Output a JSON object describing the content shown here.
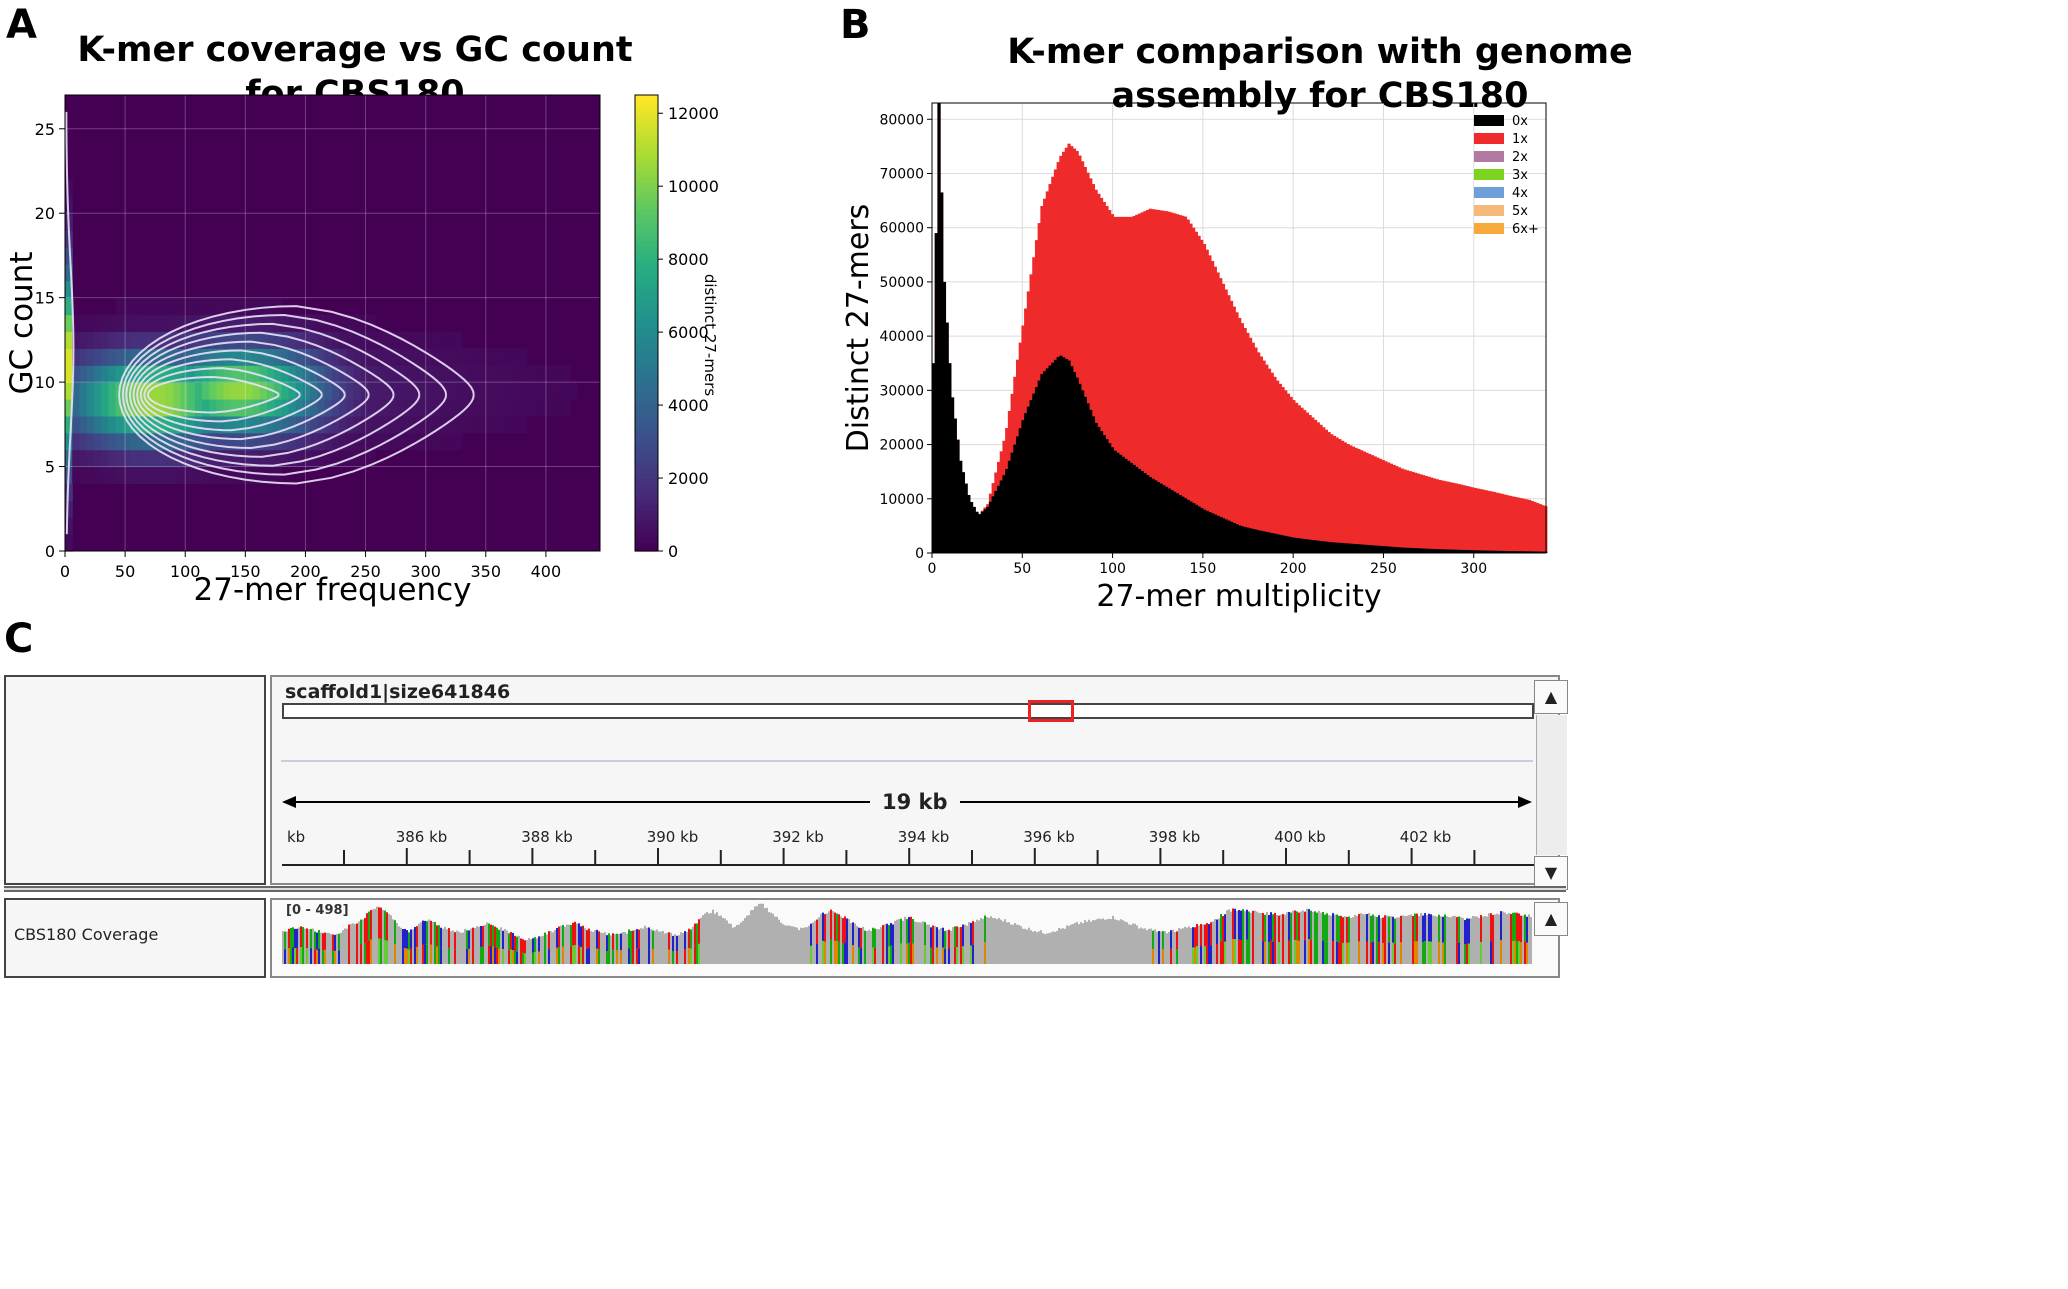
{
  "panels": {
    "a": {
      "letter": "A"
    },
    "b": {
      "letter": "B"
    },
    "c": {
      "letter": "C"
    }
  },
  "colors": {
    "viridis_dark": "#440154",
    "viridis_yellow": "#fde725",
    "red": "#ee2a2a",
    "black": "#000000"
  },
  "chart_data": [
    {
      "type": "heatmap",
      "title_line1": "K-mer coverage vs GC count",
      "title_line2": "for CBS180",
      "xlabel": "27-mer frequency",
      "ylabel": "GC count",
      "xlim": [
        0,
        445
      ],
      "ylim": [
        0,
        27
      ],
      "x_ticks": [
        0,
        50,
        100,
        150,
        200,
        250,
        300,
        350,
        400
      ],
      "y_ticks": [
        0,
        5,
        10,
        15,
        20,
        25
      ],
      "colorbar": {
        "label": "distinct 27-mers",
        "range": [
          0,
          12500
        ],
        "ticks": [
          0,
          2000,
          4000,
          6000,
          8000,
          10000,
          12000
        ]
      },
      "density_peaks": [
        {
          "x": 75,
          "y": 9,
          "value": 11000
        },
        {
          "x": 145,
          "y": 9.5,
          "value": 10500
        }
      ],
      "contour_outer": {
        "x_min": 45,
        "x_max": 340,
        "y_min": 4,
        "y_max": 14.5
      }
    },
    {
      "type": "bar",
      "title_line1": "K-mer comparison with genome",
      "title_line2": "assembly for CBS180",
      "xlabel": "27-mer multiplicity",
      "ylabel": "Distinct 27-mers",
      "xlim": [
        0,
        340
      ],
      "ylim": [
        0,
        83000
      ],
      "x_ticks": [
        0,
        50,
        100,
        150,
        200,
        250,
        300
      ],
      "y_ticks": [
        0,
        10000,
        20000,
        30000,
        40000,
        50000,
        60000,
        70000,
        80000
      ],
      "legend": [
        "0x",
        "1x",
        "2x",
        "3x",
        "4x",
        "5x",
        "6x+"
      ],
      "legend_colors": [
        "#000000",
        "#ee2a2a",
        "#b07aa1",
        "#7ed321",
        "#6f9fd8",
        "#f5b97a",
        "#f7a93b"
      ],
      "series": [
        {
          "name": "total",
          "x": [
            0,
            3,
            6,
            10,
            15,
            20,
            25,
            30,
            40,
            50,
            60,
            70,
            75,
            80,
            90,
            100,
            110,
            120,
            130,
            140,
            150,
            160,
            170,
            180,
            190,
            200,
            210,
            220,
            230,
            240,
            250,
            260,
            270,
            280,
            290,
            300,
            310,
            320,
            330,
            340
          ],
          "values": [
            35000,
            83000,
            50000,
            30000,
            17000,
            10000,
            7000,
            9000,
            22000,
            43000,
            64000,
            73000,
            75500,
            74000,
            67000,
            62000,
            62000,
            63500,
            63000,
            62000,
            57000,
            50000,
            43000,
            37000,
            32000,
            28000,
            25000,
            22000,
            20000,
            18500,
            17000,
            15500,
            14500,
            13500,
            12800,
            12000,
            11300,
            10500,
            9800,
            8500
          ]
        },
        {
          "name": "0x",
          "x": [
            0,
            3,
            6,
            10,
            15,
            20,
            25,
            30,
            40,
            50,
            60,
            70,
            75,
            80,
            90,
            100,
            110,
            120,
            130,
            140,
            150,
            160,
            170,
            180,
            190,
            200,
            220,
            240,
            260,
            280,
            300,
            320,
            340
          ],
          "values": [
            35000,
            83000,
            50000,
            30000,
            17000,
            10000,
            7000,
            8500,
            15000,
            25000,
            33000,
            36500,
            35500,
            32000,
            24000,
            19000,
            16500,
            14000,
            12000,
            10000,
            8000,
            6500,
            5000,
            4200,
            3500,
            2800,
            2000,
            1500,
            1000,
            700,
            500,
            350,
            250
          ]
        }
      ]
    }
  ],
  "igv": {
    "chrom": "scaffold1|size641846",
    "span": "19 kb",
    "ruler_labels": [
      "kb",
      "386 kb",
      "388 kb",
      "390 kb",
      "392 kb",
      "394 kb",
      "396 kb",
      "398 kb",
      "400 kb",
      "402 kb",
      "40"
    ],
    "track_name": "CBS180 Coverage",
    "track_range": "[0 - 498]",
    "coverage_profile": [
      55,
      60,
      62,
      58,
      52,
      48,
      55,
      66,
      72,
      90,
      97,
      80,
      60,
      55,
      70,
      75,
      62,
      58,
      52,
      58,
      62,
      68,
      60,
      55,
      48,
      40,
      45,
      52,
      58,
      65,
      70,
      60,
      55,
      50,
      48,
      52,
      58,
      62,
      58,
      52,
      48,
      52,
      62,
      82,
      88,
      80,
      62,
      68,
      90,
      100,
      86,
      70,
      62,
      58,
      66,
      80,
      90,
      82,
      72,
      62,
      56,
      60,
      66,
      72,
      78,
      72,
      66,
      60,
      56,
      62,
      66,
      72,
      80,
      76,
      72,
      66,
      60,
      56,
      52,
      56,
      60,
      66,
      70,
      72,
      76,
      78,
      72,
      66,
      60,
      56,
      52,
      55,
      58,
      62,
      66,
      70,
      80,
      90,
      92,
      88,
      86,
      84,
      82,
      86,
      88,
      90,
      86,
      84,
      80,
      78,
      82,
      84,
      80,
      78,
      76,
      80,
      82,
      84,
      82,
      80,
      78,
      76,
      78,
      80,
      84,
      86,
      84,
      82,
      80
    ]
  }
}
